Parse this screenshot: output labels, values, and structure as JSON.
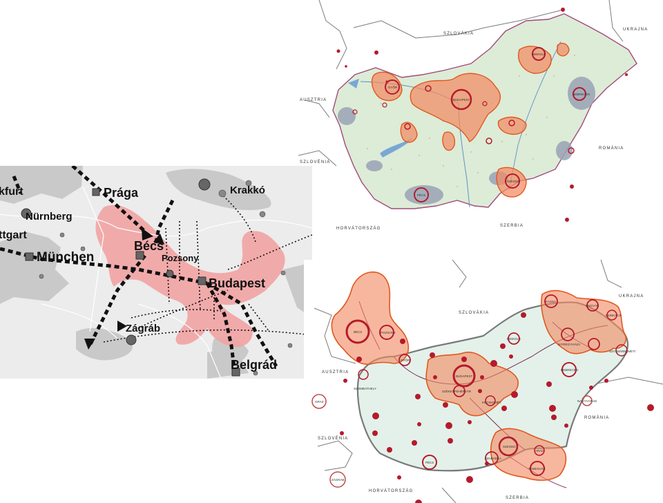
{
  "map_top": {
    "countries": {
      "slovakia": "SZLOVÁKIA",
      "ukraine": "UKRAJNA",
      "austria": "AUSZTRIA",
      "slovenia": "SZLOVÉNIA",
      "romania": "ROMÁNIA",
      "croatia": "HORVÁTORSZÁG",
      "serbia": "SZERBIA"
    },
    "cities": {
      "budapest": "BUDAPEST",
      "gyor": "GYŐR",
      "miskolc": "MISKOLC",
      "debrecen": "DEBRECEN",
      "szeged": "SZEGED",
      "pecs": "PÉCS"
    }
  },
  "map_europe": {
    "cities": {
      "frankfurt": "kfurt",
      "praga": "Prága",
      "krakko": "Krakkó",
      "nurnberg": "Nürnberg",
      "stuttgart": "ttgart",
      "becs": "Bécs",
      "pozsony": "Pozsony",
      "munchen": "München",
      "budapest": "Budapest",
      "zagrab": "Zágráb",
      "belgrad": "Belgrád"
    }
  },
  "map_bottom": {
    "countries": {
      "slovakia": "SZLOVÁKIA",
      "ukraine": "UKRAJNA",
      "austria": "AUSZTRIA",
      "slovenia": "SZLOVÉNIA",
      "romania": "ROMÁNIA",
      "croatia": "HORVÁTORSZÁG",
      "serbia": "SZERBIA"
    },
    "cities": {
      "becs": "BÉCS",
      "pozsony": "POZSONY",
      "gyor": "GYŐR",
      "szombathely": "SZOMBATHELY",
      "graz": "GRAZ",
      "budapest": "BUDAPEST",
      "szekesfehervar": "SZÉKESFEHÉRVÁR",
      "kecskemet": "KECSKEMÉT",
      "miskolc": "MISKOLC",
      "kassa": "KASSA",
      "ungvar": "UNGVÁR",
      "munkacs": "MUNKÁCS",
      "nyiregyhaza": "NYÍREGYHÁZA",
      "szatmarnemeti": "SZATMÁRNÉMETI",
      "debrecen": "DEBRECEN",
      "nagyvarad": "NAGYVÁRAD",
      "pecs": "PÉCS",
      "zagrab": "ZÁGRÁB",
      "szeged": "SZEGED",
      "szabadka": "SZABADKA",
      "arad": "ARAD",
      "temesvar": "TEMESVÁR"
    }
  },
  "colors": {
    "agglomeration_fill": "#f28a63",
    "agglomeration_stroke": "#e2571f",
    "city_red": "#b51a2a",
    "border_purple": "#7a2a5a",
    "hungary_fill_bottom": "#e3f1ea",
    "europe_pink": "#f2a3a3",
    "europe_gray": "#c9c9c9"
  }
}
